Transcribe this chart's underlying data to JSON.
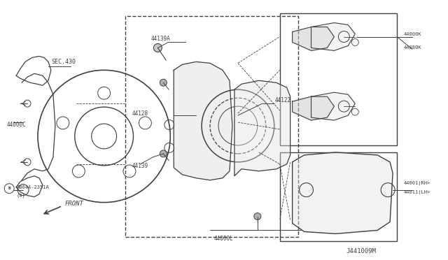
{
  "bg_color": "#ffffff",
  "line_color": "#404040",
  "fig_width": 6.4,
  "fig_height": 3.72,
  "dpi": 100,
  "diagram_id": "J441009M",
  "label_SEC430": "SEC.430",
  "label_44000C": "44000C",
  "label_08044": "08044-2351A",
  "label_08044b": "(4)",
  "label_44139A": "44139A",
  "label_44128": "44128",
  "label_44139": "44139",
  "label_44122": "44122",
  "label_44000L": "44000L",
  "label_44000K": "44000K",
  "label_44080K": "44080K",
  "label_44001RH": "44001(RH>",
  "label_44011LH": "44011(LH>",
  "label_FRONT": "FRONT",
  "label_B": "B",
  "fs": 5.5
}
